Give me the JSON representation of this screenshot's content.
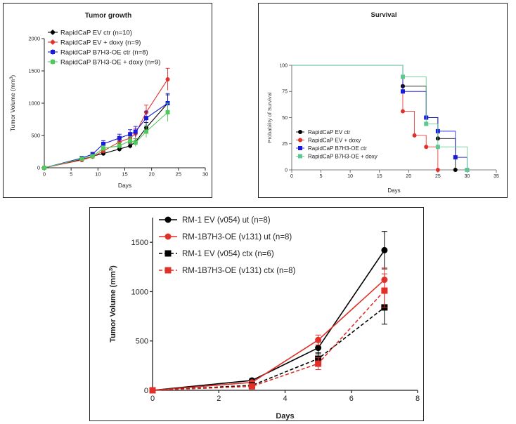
{
  "chart_data": [
    {
      "type": "line",
      "title": "Tumor growth",
      "xlabel": "Days",
      "ylabel": "Tumor Volume (mm",
      "ylabel_sup": "3",
      "ylabel_tail": ")",
      "xlim": [
        0,
        30
      ],
      "ylim": [
        0,
        2000
      ],
      "xticks": [
        0,
        5,
        10,
        15,
        20,
        25,
        30
      ],
      "yticks": [
        0,
        500,
        1000,
        1500,
        2000
      ],
      "grid": false,
      "legend_position": "top-left",
      "series": [
        {
          "name": "RapidCaP EV ctr (n=10)",
          "color": "#000000",
          "marker": "circle",
          "x": [
            0,
            7,
            9,
            11,
            14,
            16,
            17,
            19,
            23
          ],
          "y": [
            0,
            130,
            180,
            220,
            290,
            340,
            400,
            620,
            1000
          ],
          "err": [
            0,
            20,
            20,
            30,
            40,
            40,
            50,
            80,
            130
          ]
        },
        {
          "name": "RapidCaP EV + doxy (n=9)",
          "color": "#e0302a",
          "marker": "circle",
          "x": [
            0,
            7,
            9,
            11,
            14,
            16,
            17,
            19,
            23
          ],
          "y": [
            0,
            120,
            170,
            260,
            400,
            460,
            530,
            860,
            1370
          ],
          "err": [
            0,
            20,
            20,
            40,
            60,
            70,
            80,
            110,
            170
          ]
        },
        {
          "name": "RapidCaP B7H3-OE ctr (n=8)",
          "color": "#1a1adb",
          "marker": "square",
          "x": [
            0,
            7,
            9,
            11,
            14,
            16,
            17,
            19,
            23
          ],
          "y": [
            0,
            150,
            210,
            370,
            460,
            520,
            560,
            770,
            1000
          ],
          "err": [
            0,
            20,
            30,
            50,
            60,
            70,
            80,
            100,
            150
          ]
        },
        {
          "name": "RapidCaP B7H3-OE + doxy (n=9)",
          "color": "#4fc95a",
          "marker": "square",
          "x": [
            0,
            7,
            9,
            11,
            14,
            16,
            17,
            19,
            23
          ],
          "y": [
            0,
            140,
            180,
            300,
            340,
            420,
            390,
            560,
            860
          ],
          "err": [
            0,
            20,
            20,
            40,
            50,
            60,
            60,
            90,
            140
          ]
        }
      ]
    },
    {
      "type": "line",
      "title": "Survival",
      "xlabel": "Days",
      "ylabel": "Probability of Survival",
      "xlim": [
        0,
        35
      ],
      "ylim": [
        0,
        100
      ],
      "xticks": [
        0,
        5,
        10,
        15,
        20,
        25,
        30,
        35
      ],
      "yticks": [
        0,
        25,
        50,
        75,
        100
      ],
      "grid": false,
      "legend_position": "bottom-left",
      "series": [
        {
          "name": "RapidCaP EV ctr",
          "color": "#000000",
          "marker": "circle",
          "steps": [
            [
              0,
              100
            ],
            [
              19,
              80
            ],
            [
              23,
              50
            ],
            [
              25,
              30
            ],
            [
              28,
              0
            ]
          ]
        },
        {
          "name": "RapidCaP EV + doxy",
          "color": "#e0302a",
          "marker": "circle",
          "steps": [
            [
              0,
              100
            ],
            [
              19,
              56
            ],
            [
              21,
              33
            ],
            [
              23,
              22
            ],
            [
              25,
              0
            ]
          ]
        },
        {
          "name": "RapidCaP B7H3-OE ctr",
          "color": "#1a1adb",
          "marker": "square",
          "steps": [
            [
              0,
              100
            ],
            [
              19,
              75
            ],
            [
              23,
              50
            ],
            [
              25,
              37
            ],
            [
              28,
              12
            ],
            [
              30,
              0
            ]
          ]
        },
        {
          "name": "RapidCaP B7H3-OE + doxy",
          "color": "#5cc98f",
          "marker": "square",
          "steps": [
            [
              0,
              100
            ],
            [
              19,
              89
            ],
            [
              23,
              44
            ],
            [
              25,
              22
            ],
            [
              30,
              0
            ]
          ]
        }
      ]
    },
    {
      "type": "line",
      "title": "",
      "xlabel": "Days",
      "ylabel": "Tumor Volume (mm",
      "ylabel_sup": "3",
      "ylabel_tail": ")",
      "xlim": [
        0,
        8
      ],
      "ylim": [
        0,
        1750
      ],
      "xticks": [
        0,
        2,
        4,
        6,
        8
      ],
      "yticks": [
        0,
        500,
        1000,
        1500
      ],
      "grid": false,
      "legend_position": "top-left",
      "series": [
        {
          "name": "RM-1 EV (v054) ut (n=8)",
          "color": "#000000",
          "marker": "circle",
          "dash": false,
          "x": [
            0,
            3,
            5,
            7
          ],
          "y": [
            0,
            100,
            430,
            1420
          ],
          "err": [
            0,
            15,
            60,
            190
          ]
        },
        {
          "name": "RM-1B7H3-OE (v131) ut (n=8)",
          "color": "#e0302a",
          "marker": "circle",
          "dash": false,
          "x": [
            0,
            3,
            5,
            7
          ],
          "y": [
            0,
            80,
            510,
            1120
          ],
          "err": [
            0,
            15,
            50,
            120
          ]
        },
        {
          "name": "RM-1 EV (v054) ctx (n=6)",
          "color": "#000000",
          "marker": "square",
          "dash": true,
          "x": [
            0,
            3,
            5,
            7
          ],
          "y": [
            0,
            50,
            320,
            840
          ],
          "err": [
            0,
            10,
            60,
            170
          ]
        },
        {
          "name": "RM-1B7H3-OE (v131) ctx (n=8)",
          "color": "#e0302a",
          "marker": "square",
          "dash": true,
          "x": [
            0,
            3,
            5,
            7
          ],
          "y": [
            0,
            40,
            270,
            1010
          ],
          "err": [
            0,
            10,
            60,
            170
          ]
        }
      ]
    }
  ]
}
